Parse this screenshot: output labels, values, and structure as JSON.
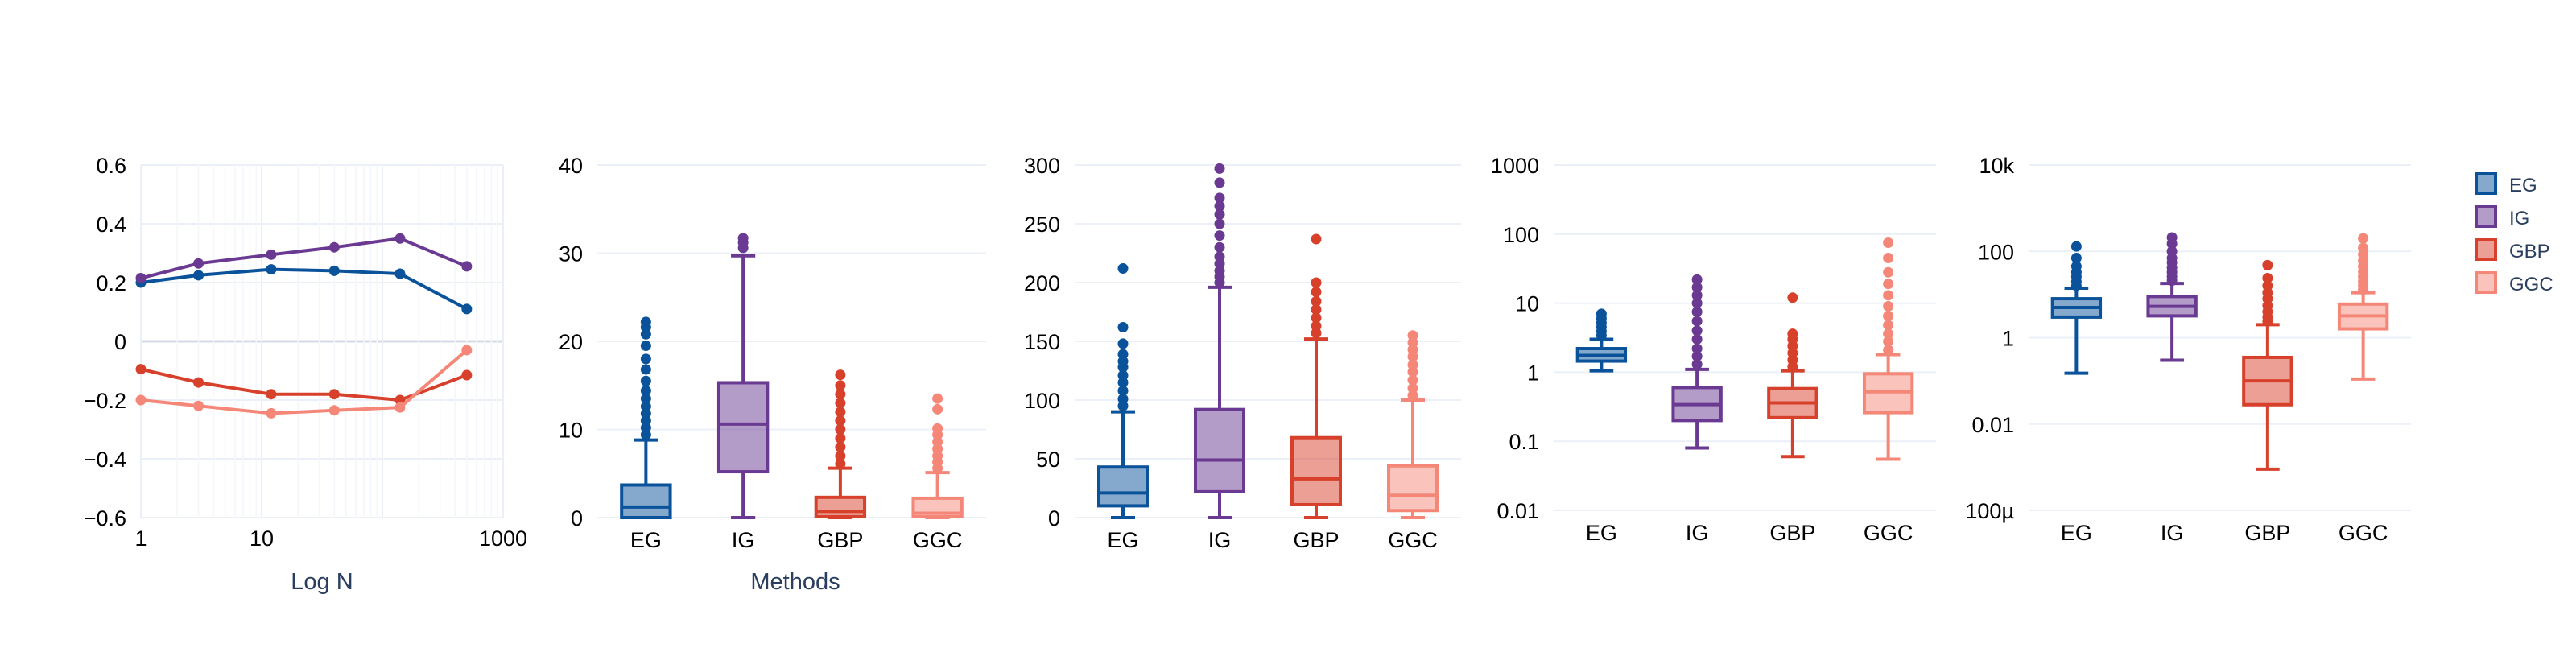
{
  "colors": {
    "EG": "#0a539b",
    "IG": "#6a3a93",
    "GBP": "#d7402b",
    "GGC": "#f58778"
  },
  "legend": {
    "items": [
      "EG",
      "IG",
      "GBP",
      "GGC"
    ]
  },
  "chart_data": [
    {
      "type": "line",
      "xlabel": "Log N",
      "x_scale": "log",
      "xlim": [
        1,
        1000
      ],
      "x_ticks": [
        "1",
        "10",
        "1000"
      ],
      "ylim": [
        -0.6,
        0.6
      ],
      "y_ticks": [
        "0.6",
        "0.4",
        "0.2",
        "0",
        "−0.2",
        "−0.4",
        "−0.6"
      ],
      "series": [
        {
          "name": "EG",
          "x": [
            1,
            3,
            12,
            40,
            140,
            500
          ],
          "y": [
            0.2,
            0.225,
            0.245,
            0.24,
            0.23,
            0.11
          ]
        },
        {
          "name": "IG",
          "x": [
            1,
            3,
            12,
            40,
            140,
            500
          ],
          "y": [
            0.215,
            0.265,
            0.295,
            0.32,
            0.35,
            0.255
          ]
        },
        {
          "name": "GBP",
          "x": [
            1,
            3,
            12,
            40,
            140,
            500
          ],
          "y": [
            -0.095,
            -0.14,
            -0.18,
            -0.18,
            -0.2,
            -0.115
          ]
        },
        {
          "name": "GGC",
          "x": [
            1,
            3,
            12,
            40,
            140,
            500
          ],
          "y": [
            -0.2,
            -0.22,
            -0.245,
            -0.235,
            -0.225,
            -0.03
          ]
        }
      ]
    },
    {
      "type": "box",
      "xlabel": "Methods",
      "categories": [
        "EG",
        "IG",
        "GBP",
        "GGC"
      ],
      "ylim": [
        0,
        40
      ],
      "y_ticks": [
        "40",
        "30",
        "20",
        "10",
        "0"
      ],
      "series": [
        {
          "name": "EG",
          "q1": 0,
          "median": 1.2,
          "q3": 3.7,
          "whisker_low": 0,
          "whisker_high": 8.8,
          "outliers": [
            9.4,
            10.2,
            11,
            11.8,
            12.6,
            13.5,
            14.4,
            15.5,
            16.8,
            18,
            19.5,
            20.8,
            21.6,
            22.2
          ]
        },
        {
          "name": "IG",
          "q1": 5.2,
          "median": 10.6,
          "q3": 15.3,
          "whisker_low": 0,
          "whisker_high": 29.7,
          "outliers": [
            30.6,
            31.2,
            31.7
          ]
        },
        {
          "name": "GBP",
          "q1": 0.1,
          "median": 0.7,
          "q3": 2.3,
          "whisker_low": 0,
          "whisker_high": 5.6,
          "outliers": [
            6.1,
            7,
            8,
            9,
            10,
            11,
            12,
            13,
            14,
            15,
            16.2
          ]
        },
        {
          "name": "GGC",
          "q1": 0.1,
          "median": 0.5,
          "q3": 2.2,
          "whisker_low": 0,
          "whisker_high": 5.1,
          "outliers": [
            5.6,
            6.3,
            7,
            7.8,
            8.6,
            9.4,
            10.1,
            12.3,
            13.5
          ]
        }
      ]
    },
    {
      "type": "box",
      "categories": [
        "EG",
        "IG",
        "GBP",
        "GGC"
      ],
      "ylim": [
        0,
        300
      ],
      "y_ticks": [
        "300",
        "250",
        "200",
        "150",
        "100",
        "50",
        "0"
      ],
      "series": [
        {
          "name": "EG",
          "q1": 10,
          "median": 21,
          "q3": 43,
          "whisker_low": 0,
          "whisker_high": 90,
          "outliers": [
            95,
            101,
            108,
            115,
            121,
            128,
            133,
            139,
            148,
            162,
            212
          ]
        },
        {
          "name": "IG",
          "q1": 22,
          "median": 49,
          "q3": 92,
          "whisker_low": 0,
          "whisker_high": 196,
          "outliers": [
            200,
            205,
            210,
            216,
            222,
            230,
            240,
            250,
            258,
            265,
            272,
            285,
            297
          ]
        },
        {
          "name": "GBP",
          "q1": 11,
          "median": 33,
          "q3": 68,
          "whisker_low": 0,
          "whisker_high": 152,
          "outliers": [
            157,
            163,
            170,
            177,
            184,
            192,
            200,
            237
          ]
        },
        {
          "name": "GGC",
          "q1": 6,
          "median": 19,
          "q3": 44,
          "whisker_low": 0,
          "whisker_high": 100,
          "outliers": [
            104,
            110,
            117,
            124,
            130,
            137,
            143,
            149,
            155
          ]
        }
      ]
    },
    {
      "type": "box",
      "categories": [
        "EG",
        "IG",
        "GBP",
        "GGC"
      ],
      "y_scale": "log",
      "ylim": [
        0.01,
        1000
      ],
      "y_ticks": [
        "1000",
        "100",
        "10",
        "1",
        "0.1",
        "0.01"
      ],
      "y_tick_values": [
        1000,
        100,
        10,
        1,
        0.1,
        0.01
      ],
      "series": [
        {
          "name": "EG",
          "q1": 1.45,
          "median": 1.75,
          "q3": 2.2,
          "whisker_low": 1.05,
          "whisker_high": 3.0,
          "outliers": [
            3.4,
            3.9,
            4.5,
            5.2,
            6,
            7
          ]
        },
        {
          "name": "IG",
          "q1": 0.2,
          "median": 0.34,
          "q3": 0.6,
          "whisker_low": 0.08,
          "whisker_high": 1.1,
          "outliers": [
            1.3,
            1.7,
            2.2,
            3,
            4,
            5.5,
            7.5,
            10,
            13,
            17,
            22
          ]
        },
        {
          "name": "GBP",
          "q1": 0.22,
          "median": 0.36,
          "q3": 0.58,
          "whisker_low": 0.06,
          "whisker_high": 1.05,
          "outliers": [
            1.2,
            1.5,
            1.9,
            2.4,
            3,
            3.6,
            12
          ]
        },
        {
          "name": "GGC",
          "q1": 0.26,
          "median": 0.52,
          "q3": 0.95,
          "whisker_low": 0.055,
          "whisker_high": 1.8,
          "outliers": [
            2.1,
            2.8,
            3.6,
            4.8,
            6.5,
            9,
            13,
            19,
            28,
            45,
            75
          ]
        }
      ]
    },
    {
      "type": "box",
      "categories": [
        "EG",
        "IG",
        "GBP",
        "GGC"
      ],
      "y_scale": "log",
      "ylim": [
        0.0001,
        10000
      ],
      "y_ticks": [
        "10k",
        "100",
        "1",
        "0.01",
        "100µ"
      ],
      "y_tick_values": [
        10000,
        100,
        1,
        0.01,
        0.0001
      ],
      "series": [
        {
          "name": "EG",
          "q1": 3,
          "median": 5,
          "q3": 8,
          "whisker_low": 0.15,
          "whisker_high": 14,
          "outliers": [
            16,
            20,
            26,
            33,
            45,
            70,
            130
          ]
        },
        {
          "name": "IG",
          "q1": 3.2,
          "median": 5.3,
          "q3": 9,
          "whisker_low": 0.3,
          "whisker_high": 18,
          "outliers": [
            21,
            26,
            33,
            42,
            55,
            70,
            100,
            150,
            210
          ]
        },
        {
          "name": "GBP",
          "q1": 0.028,
          "median": 0.1,
          "q3": 0.35,
          "whisker_low": 0.0009,
          "whisker_high": 2,
          "outliers": [
            2.4,
            3,
            4,
            5.5,
            8,
            11,
            16,
            24,
            48
          ]
        },
        {
          "name": "GGC",
          "q1": 1.6,
          "median": 3.2,
          "q3": 6,
          "whisker_low": 0.11,
          "whisker_high": 11,
          "outliers": [
            13,
            16,
            20,
            26,
            34,
            45,
            60,
            85,
            120,
            200
          ]
        }
      ]
    }
  ]
}
